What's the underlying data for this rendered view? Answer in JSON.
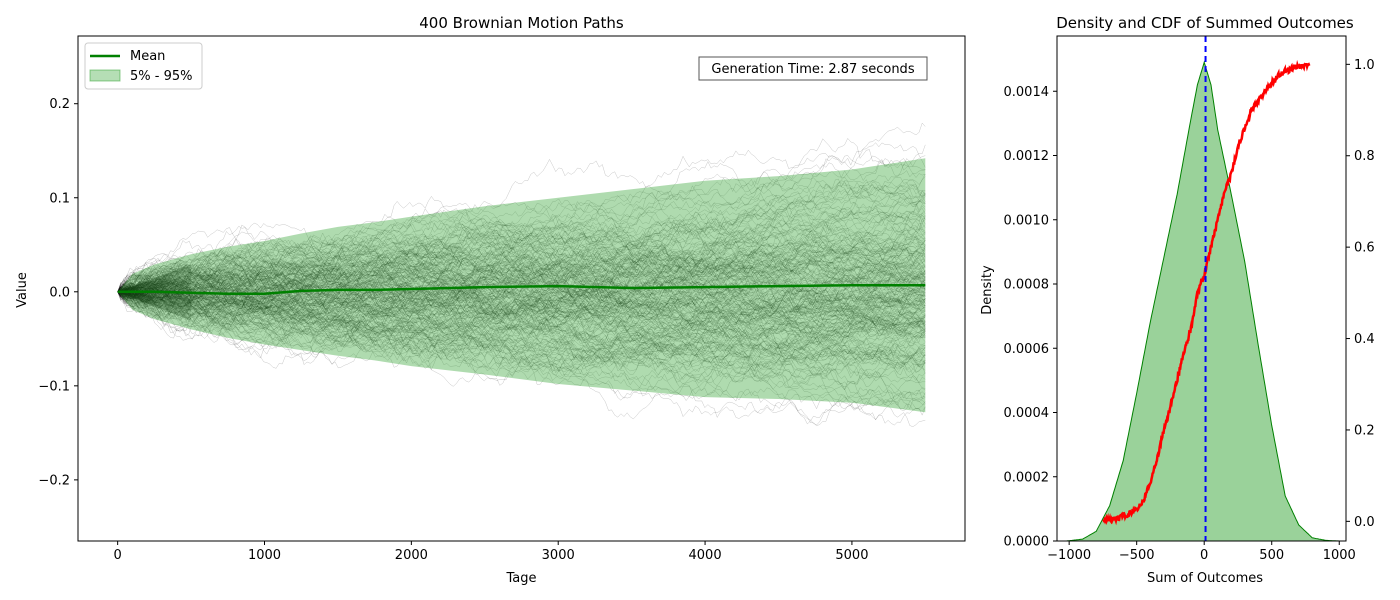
{
  "chart_data": [
    {
      "type": "line",
      "title": "400 Brownian Motion Paths",
      "xlabel": "Tage",
      "ylabel": "Value",
      "xlim": [
        -270,
        5770
      ],
      "ylim": [
        -0.265,
        0.272
      ],
      "xticks": [
        0,
        1000,
        2000,
        3000,
        4000,
        5000
      ],
      "xtick_labels": [
        "0",
        "1000",
        "2000",
        "3000",
        "4000",
        "5000"
      ],
      "yticks": [
        -0.2,
        -0.1,
        0.0,
        0.1,
        0.2
      ],
      "ytick_labels": [
        "−0.2",
        "−0.1",
        "0.0",
        "0.1",
        "0.2"
      ],
      "grid": false,
      "n_paths": 400,
      "n_steps": 5500,
      "legend": {
        "placement": "top-left",
        "entries": [
          {
            "label": "Mean",
            "color": "#008000",
            "kind": "line"
          },
          {
            "label": "5% - 95%",
            "color": "#2ca02c",
            "kind": "band"
          }
        ]
      },
      "annotation": "Generation Time: 2.87 seconds",
      "mean": {
        "name": "Mean",
        "color": "#008000",
        "x": [
          0,
          250,
          500,
          750,
          1000,
          1250,
          1500,
          1750,
          2000,
          2500,
          3000,
          3500,
          4000,
          4500,
          5000,
          5500
        ],
        "y": [
          0.0,
          0.0,
          -0.001,
          -0.002,
          -0.002,
          0.001,
          0.002,
          0.002,
          0.003,
          0.005,
          0.006,
          0.004,
          0.005,
          0.006,
          0.007,
          0.007
        ]
      },
      "band": {
        "name": "5% - 95%",
        "color": "#2ca02c",
        "x": [
          0,
          100,
          250,
          500,
          750,
          1000,
          1250,
          1500,
          1750,
          2000,
          2500,
          3000,
          3500,
          4000,
          4500,
          5000,
          5500
        ],
        "lower": [
          0.0,
          -0.019,
          -0.029,
          -0.04,
          -0.049,
          -0.056,
          -0.062,
          -0.068,
          -0.073,
          -0.079,
          -0.088,
          -0.098,
          -0.105,
          -0.112,
          -0.114,
          -0.118,
          -0.128
        ],
        "upper": [
          0.0,
          0.019,
          0.029,
          0.04,
          0.048,
          0.054,
          0.062,
          0.069,
          0.074,
          0.08,
          0.091,
          0.1,
          0.109,
          0.118,
          0.123,
          0.13,
          0.142
        ]
      },
      "paths_color": "#000000"
    },
    {
      "type": "area",
      "title": "Density and CDF of Summed Outcomes",
      "xlabel": "Sum of Outcomes",
      "ylabel": "Density",
      "xlim": [
        -1090,
        1050
      ],
      "ylim": [
        0,
        0.001572
      ],
      "ylim_right": [
        -0.043,
        1.062
      ],
      "xticks": [
        -1000,
        -500,
        0,
        500,
        1000
      ],
      "xtick_labels": [
        "−1000",
        "−500",
        "0",
        "500",
        "1000"
      ],
      "yticks": [
        0.0,
        0.0002,
        0.0004,
        0.0006,
        0.0008,
        0.001,
        0.0012,
        0.0014
      ],
      "ytick_labels": [
        "0.0000",
        "0.0002",
        "0.0004",
        "0.0006",
        "0.0008",
        "0.0010",
        "0.0012",
        "0.0014"
      ],
      "yticks_right": [
        0.0,
        0.2,
        0.4,
        0.6,
        0.8,
        1.0
      ],
      "ytick_right_labels": [
        "0.0",
        "0.2",
        "0.4",
        "0.6",
        "0.8",
        "1.0"
      ],
      "grid": false,
      "vline": {
        "x": 10,
        "color": "#0000ff",
        "style": "dashed"
      },
      "density": {
        "color": "#2ca02c",
        "edge_color": "#008000",
        "x": [
          -1020,
          -900,
          -800,
          -700,
          -600,
          -500,
          -400,
          -300,
          -200,
          -100,
          -50,
          0,
          50,
          100,
          200,
          300,
          400,
          500,
          600,
          700,
          800,
          900,
          1000
        ],
        "y": [
          0.0,
          6e-06,
          3e-05,
          0.00011,
          0.00025,
          0.00046,
          0.00068,
          0.00088,
          0.00108,
          0.00131,
          0.00142,
          0.00149,
          0.00142,
          0.00128,
          0.00108,
          0.00087,
          0.00061,
          0.00036,
          0.00014,
          5e-05,
          1e-05,
          2e-06,
          0.0
        ]
      },
      "cdf": {
        "color": "#ff0000",
        "x": [
          -750,
          -650,
          -550,
          -500,
          -450,
          -400,
          -350,
          -300,
          -250,
          -200,
          -150,
          -100,
          -50,
          0,
          50,
          100,
          150,
          200,
          250,
          300,
          350,
          400,
          450,
          500,
          550,
          600,
          650,
          700,
          750,
          780
        ],
        "y": [
          0.0,
          0.006,
          0.018,
          0.025,
          0.045,
          0.085,
          0.135,
          0.2,
          0.25,
          0.31,
          0.37,
          0.42,
          0.5,
          0.54,
          0.6,
          0.66,
          0.72,
          0.76,
          0.82,
          0.86,
          0.9,
          0.92,
          0.94,
          0.96,
          0.975,
          0.985,
          0.99,
          0.995,
          0.998,
          1.0
        ]
      }
    }
  ]
}
